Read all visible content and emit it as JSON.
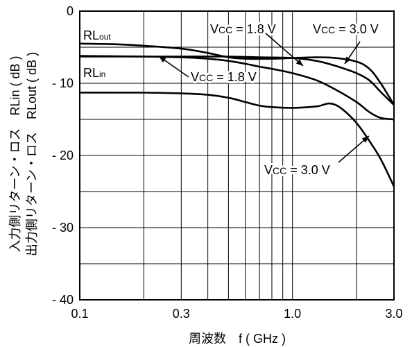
{
  "chart_data": {
    "type": "line",
    "xlabel": "周波数　f ( GHz )",
    "ylabel_lines": [
      "入力側リターン・ロス　RLin ( dB )",
      "出力側リターン・ロス　RLout ( dB )"
    ],
    "x_scale": "log",
    "xlim": [
      0.1,
      3.0
    ],
    "ylim": [
      -40,
      0
    ],
    "x_tick_labels": [
      "0.1",
      "0.3",
      "1.0",
      "3.0"
    ],
    "y_tick_labels": [
      "0",
      "- 10",
      "- 20",
      "- 30",
      "- 40"
    ],
    "grid": true,
    "series": [
      {
        "name": "RLout, Vcc = 1.8 V",
        "x": [
          0.1,
          0.15,
          0.2,
          0.3,
          0.4,
          0.5,
          0.6,
          0.8,
          1.0,
          1.3,
          1.6,
          2.0,
          2.3,
          2.6,
          3.0
        ],
        "y": [
          -4.5,
          -4.6,
          -4.8,
          -5.2,
          -5.8,
          -6.4,
          -6.6,
          -6.6,
          -6.5,
          -6.4,
          -6.5,
          -7.0,
          -8.0,
          -10.0,
          -13.0
        ]
      },
      {
        "name": "RLout, Vcc = 3.0 V",
        "x": [
          0.1,
          0.2,
          0.3,
          0.5,
          0.7,
          1.0,
          1.3,
          1.6,
          2.0,
          2.3,
          2.6,
          3.0
        ],
        "y": [
          -6.3,
          -6.3,
          -6.3,
          -6.3,
          -6.4,
          -6.5,
          -6.9,
          -7.6,
          -8.6,
          -9.6,
          -11.2,
          -13.0
        ]
      },
      {
        "name": "RLin, Vcc = 1.8 V",
        "x": [
          0.1,
          0.2,
          0.3,
          0.4,
          0.5,
          0.6,
          0.7,
          0.8,
          1.0,
          1.3,
          1.6,
          2.0,
          2.3,
          2.6,
          3.0
        ],
        "y": [
          -6.2,
          -6.3,
          -6.4,
          -6.6,
          -6.9,
          -7.3,
          -7.7,
          -8.0,
          -8.6,
          -9.6,
          -10.9,
          -12.6,
          -14.0,
          -14.8,
          -15.0
        ]
      },
      {
        "name": "RLin, Vcc = 3.0 V",
        "x": [
          0.1,
          0.2,
          0.3,
          0.4,
          0.5,
          0.6,
          0.7,
          0.8,
          1.0,
          1.3,
          1.5,
          1.7,
          2.0,
          2.3,
          2.6,
          3.0
        ],
        "y": [
          -11.3,
          -11.3,
          -11.4,
          -11.6,
          -12.0,
          -12.6,
          -13.1,
          -13.3,
          -13.4,
          -13.2,
          -12.8,
          -13.5,
          -15.5,
          -18.0,
          -20.5,
          -24.3
        ]
      }
    ],
    "annotations": [
      {
        "text": "RLout"
      },
      {
        "text": "RLin"
      },
      {
        "text": "Vcc = 1.8 V"
      },
      {
        "text": "Vcc = 3.0 V"
      },
      {
        "text": "Vcc = 1.8 V"
      },
      {
        "text": "Vcc = 3.0 V"
      }
    ],
    "colors": {
      "line": "#000000",
      "grid": "#000000",
      "background": "#ffffff"
    }
  }
}
